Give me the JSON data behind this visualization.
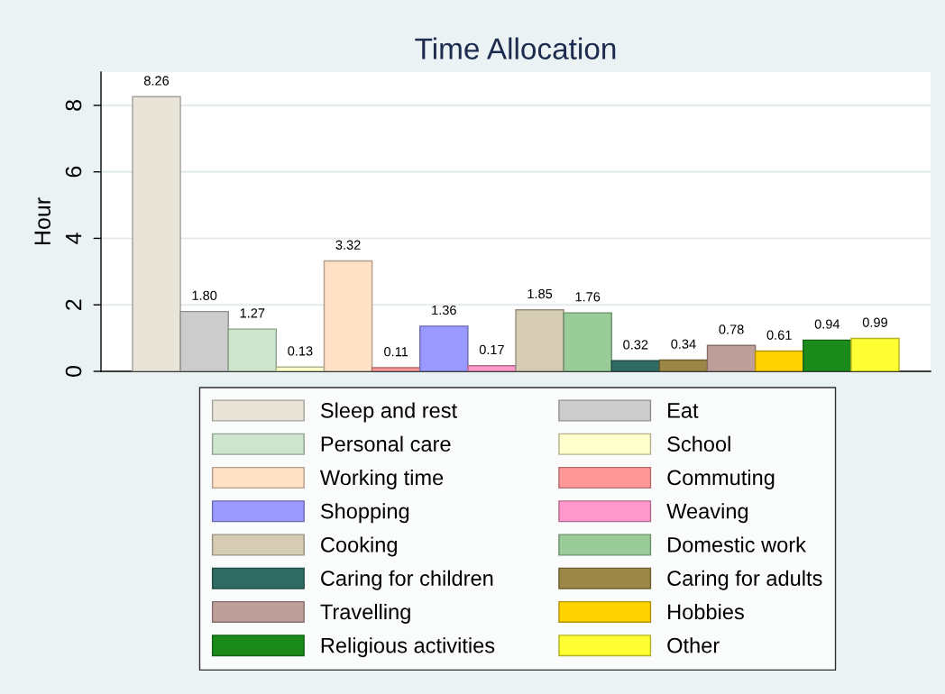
{
  "chart_data": {
    "type": "bar",
    "title": "Time Allocation",
    "ylabel": "Hour",
    "categories": [
      null
    ],
    "series": [
      {
        "name": "Sleep and rest",
        "color": "#e8e4d8",
        "values": [
          8.26
        ],
        "value_labels": [
          "8.26"
        ]
      },
      {
        "name": "Eat",
        "color": "#cccccc",
        "values": [
          1.8
        ],
        "value_labels": [
          "1.80"
        ]
      },
      {
        "name": "Personal care",
        "color": "#cce5cc",
        "values": [
          1.27
        ],
        "value_labels": [
          "1.27"
        ]
      },
      {
        "name": "School",
        "color": "#ffffcc",
        "values": [
          0.13
        ],
        "value_labels": [
          "0.13"
        ]
      },
      {
        "name": "Working time",
        "color": "#ffe1c6",
        "values": [
          3.32
        ],
        "value_labels": [
          "3.32"
        ]
      },
      {
        "name": "Commuting",
        "color": "#ff9999",
        "values": [
          0.11
        ],
        "value_labels": [
          "0.11"
        ]
      },
      {
        "name": "Shopping",
        "color": "#9999ff",
        "values": [
          1.36
        ],
        "value_labels": [
          "1.36"
        ]
      },
      {
        "name": "Weaving",
        "color": "#ff99cc",
        "values": [
          0.17
        ],
        "value_labels": [
          "0.17"
        ]
      },
      {
        "name": "Cooking",
        "color": "#d6ccb4",
        "values": [
          1.85
        ],
        "value_labels": [
          "1.85"
        ]
      },
      {
        "name": "Domestic work",
        "color": "#99cc99",
        "values": [
          1.76
        ],
        "value_labels": [
          "1.76"
        ]
      },
      {
        "name": "Caring for children",
        "color": "#2d6b63",
        "values": [
          0.32
        ],
        "value_labels": [
          "0.32"
        ]
      },
      {
        "name": "Caring for adults",
        "color": "#9c8746",
        "values": [
          0.34
        ],
        "value_labels": [
          "0.34"
        ]
      },
      {
        "name": "Travelling",
        "color": "#bf9f99",
        "values": [
          0.78
        ],
        "value_labels": [
          "0.78"
        ]
      },
      {
        "name": "Hobbies",
        "color": "#ffd200",
        "values": [
          0.61
        ],
        "value_labels": [
          "0.61"
        ]
      },
      {
        "name": "Religious activities",
        "color": "#1a8a1a",
        "values": [
          0.94
        ],
        "value_labels": [
          "0.94"
        ]
      },
      {
        "name": "Other",
        "color": "#ffff33",
        "values": [
          0.99
        ],
        "value_labels": [
          "0.99"
        ]
      }
    ],
    "ylim": [
      0,
      9
    ],
    "yticks": [
      0,
      2,
      4,
      6,
      8
    ],
    "grid": "y",
    "legend": "bottom"
  }
}
